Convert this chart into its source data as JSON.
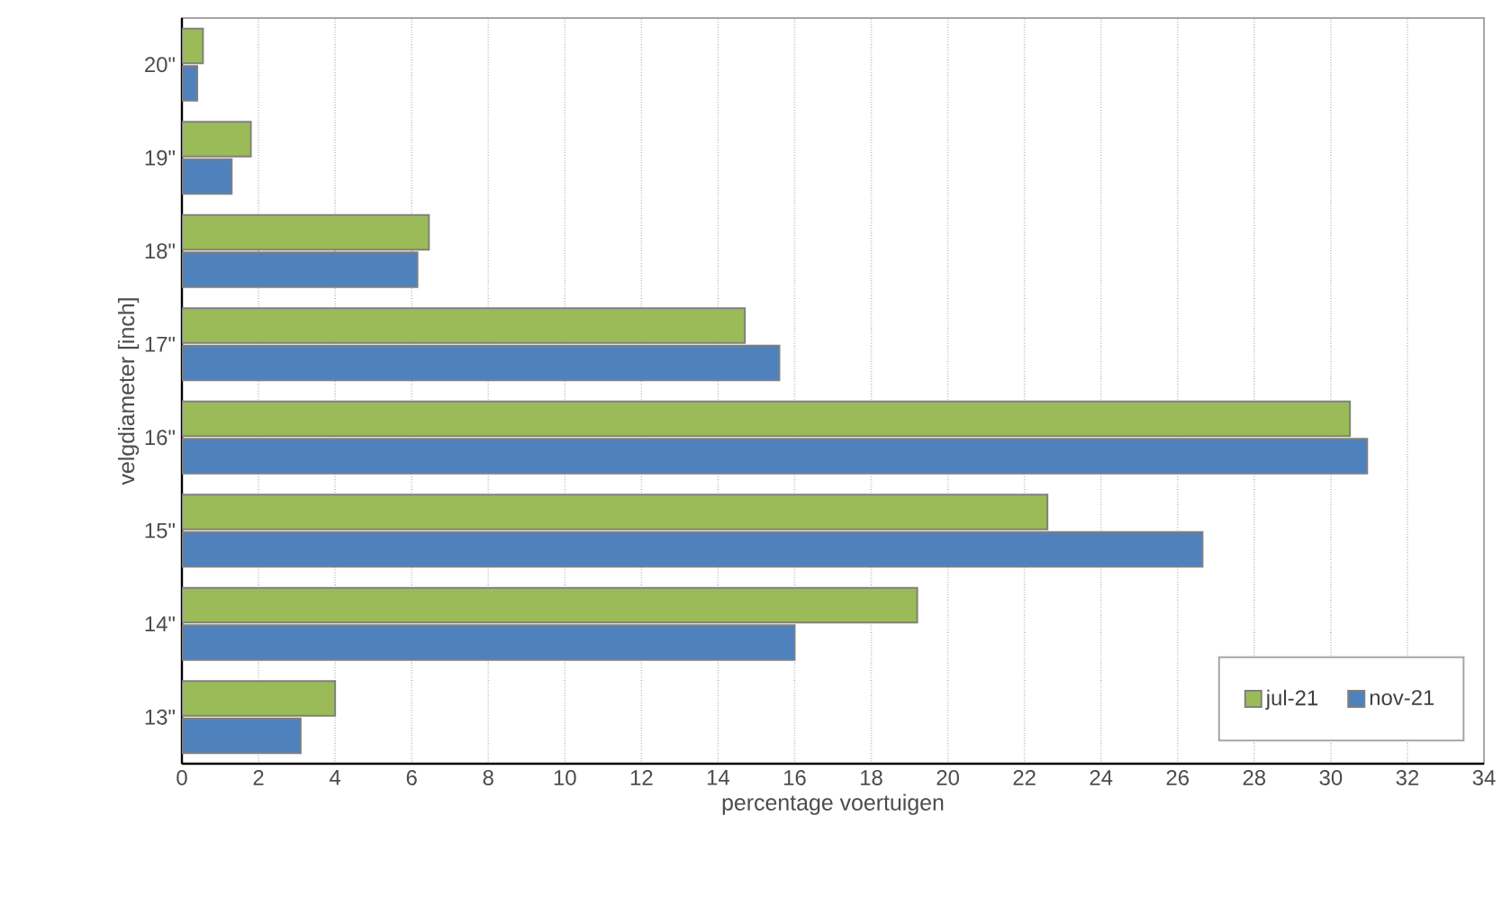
{
  "chart_data": {
    "type": "bar",
    "orientation": "horizontal",
    "xlabel": "percentage voertuigen",
    "ylabel": "velgdiameter [inch]",
    "categories": [
      "20\"",
      "19\"",
      "18\"",
      "17\"",
      "16\"",
      "15\"",
      "14\"",
      "13\""
    ],
    "series": [
      {
        "name": "jul-21",
        "color": "#9bbb59",
        "values": [
          0.55,
          1.8,
          6.45,
          14.7,
          30.5,
          22.6,
          19.2,
          4.0
        ]
      },
      {
        "name": "nov-21",
        "color": "#4f81bd",
        "values": [
          0.4,
          1.3,
          6.15,
          15.6,
          30.95,
          26.65,
          16.0,
          3.1
        ]
      }
    ],
    "xlim": [
      0,
      34
    ],
    "xticks": [
      0,
      2,
      4,
      6,
      8,
      10,
      12,
      14,
      16,
      18,
      20,
      22,
      24,
      26,
      28,
      30,
      32,
      34
    ],
    "grid": "x",
    "legend": "bottom right"
  }
}
